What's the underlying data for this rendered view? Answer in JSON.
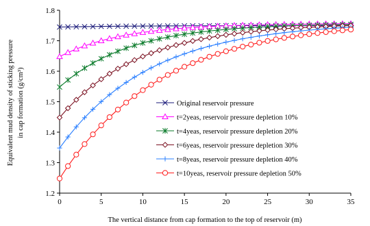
{
  "chart_data": {
    "type": "line",
    "xlabel": "The vertical distance from cap formation to the top of reservoir (m)",
    "ylabel_line1": "Equivalent mud density of sticking pressure",
    "ylabel_line2": "in cap formation (g/cm³)",
    "xlim": [
      0,
      35
    ],
    "ylim": [
      1.2,
      1.8
    ],
    "x_ticks": [
      0,
      5,
      10,
      15,
      20,
      25,
      30,
      35
    ],
    "y_ticks": [
      1.2,
      1.3,
      1.4,
      1.5,
      1.6,
      1.7,
      1.8
    ],
    "x_tick_labels": [
      "0",
      "5",
      "10",
      "15",
      "20",
      "25",
      "30",
      "35"
    ],
    "y_tick_labels": [
      "1.2",
      "1.3",
      "1.4",
      "1.5",
      "1.6",
      "1.7",
      "1.8"
    ],
    "grid": false,
    "legend_position": "lower-right",
    "x_step": 1,
    "series": [
      {
        "name": "Original reservoir pressure",
        "marker": "x",
        "color": "#1a1a7a",
        "start": 1.745,
        "end": 1.75,
        "k": 0.1
      },
      {
        "name": "t=2yeas, reservoir pressure depletion 10%",
        "marker": "triangle",
        "color": "#ff00ff",
        "start": 1.648,
        "end": 1.757,
        "k": 0.13
      },
      {
        "name": "t=4yeas, reservoir pressure depletion 20%",
        "marker": "asterisk",
        "color": "#0a7a2a",
        "start": 1.548,
        "end": 1.757,
        "k": 0.118
      },
      {
        "name": "t=6yeas, reservoir pressure depletion 30%",
        "marker": "diamond",
        "color": "#7a1020",
        "start": 1.448,
        "end": 1.758,
        "k": 0.104
      },
      {
        "name": "t=8yeas, reservoir pressure depletion 40%",
        "marker": "plus",
        "color": "#2a7fff",
        "start": 1.348,
        "end": 1.761,
        "k": 0.092
      },
      {
        "name": "t=10yeas, reservoir pressure depletion 50%",
        "marker": "circle",
        "color": "#ff1a1a",
        "start": 1.248,
        "end": 1.766,
        "k": 0.082
      }
    ]
  }
}
